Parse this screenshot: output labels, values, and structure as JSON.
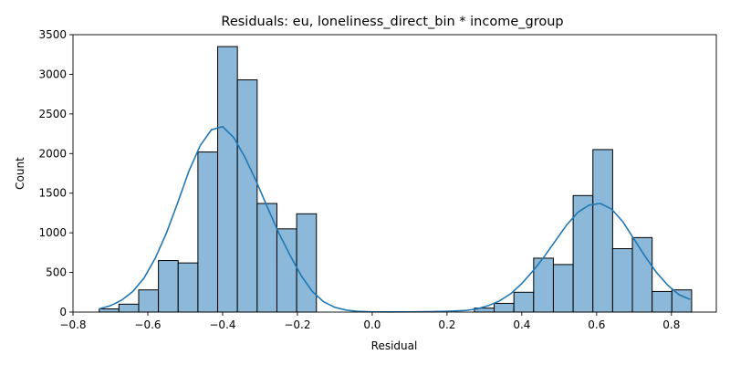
{
  "chart_data": {
    "type": "bar",
    "title": "Residuals: eu, loneliness_direct_bin * income_group",
    "xlabel": "Residual",
    "ylabel": "Count",
    "xlim": [
      -0.8,
      0.92
    ],
    "ylim": [
      0,
      3500
    ],
    "xticks": [
      -0.8,
      -0.6,
      -0.4,
      -0.2,
      0.0,
      0.2,
      0.4,
      0.6,
      0.8
    ],
    "xtick_labels": [
      "−0.8",
      "−0.6",
      "−0.4",
      "−0.2",
      "0.0",
      "0.2",
      "0.4",
      "0.6",
      "0.8"
    ],
    "yticks": [
      0,
      500,
      1000,
      1500,
      2000,
      2500,
      3000,
      3500
    ],
    "ytick_labels": [
      "0",
      "500",
      "1000",
      "1500",
      "2000",
      "2500",
      "3000",
      "3500"
    ],
    "grid": false,
    "bins": [
      {
        "x0": -0.73,
        "x1": -0.6772,
        "count": 40
      },
      {
        "x0": -0.6772,
        "x1": -0.6244,
        "count": 100
      },
      {
        "x0": -0.6244,
        "x1": -0.5716,
        "count": 280
      },
      {
        "x0": -0.5716,
        "x1": -0.5188,
        "count": 650
      },
      {
        "x0": -0.5188,
        "x1": -0.466,
        "count": 620
      },
      {
        "x0": -0.466,
        "x1": -0.4132,
        "count": 2020
      },
      {
        "x0": -0.4132,
        "x1": -0.3604,
        "count": 3350
      },
      {
        "x0": -0.3604,
        "x1": -0.3076,
        "count": 2930
      },
      {
        "x0": -0.3076,
        "x1": -0.2548,
        "count": 1370
      },
      {
        "x0": -0.2548,
        "x1": -0.202,
        "count": 1050
      },
      {
        "x0": -0.202,
        "x1": -0.1492,
        "count": 1240
      },
      {
        "x0": 0.2732,
        "x1": 0.326,
        "count": 50
      },
      {
        "x0": 0.326,
        "x1": 0.3788,
        "count": 110
      },
      {
        "x0": 0.3788,
        "x1": 0.4316,
        "count": 250
      },
      {
        "x0": 0.4316,
        "x1": 0.4844,
        "count": 680
      },
      {
        "x0": 0.4844,
        "x1": 0.5372,
        "count": 600
      },
      {
        "x0": 0.5372,
        "x1": 0.59,
        "count": 1470
      },
      {
        "x0": 0.59,
        "x1": 0.6428,
        "count": 2050
      },
      {
        "x0": 0.6428,
        "x1": 0.6956,
        "count": 800
      },
      {
        "x0": 0.6956,
        "x1": 0.7484,
        "count": 940
      },
      {
        "x0": 0.7484,
        "x1": 0.8012,
        "count": 260
      },
      {
        "x0": 0.8012,
        "x1": 0.854,
        "count": 280
      }
    ],
    "kde": {
      "x": [
        -0.73,
        -0.7,
        -0.67,
        -0.64,
        -0.61,
        -0.58,
        -0.55,
        -0.52,
        -0.49,
        -0.46,
        -0.43,
        -0.4,
        -0.37,
        -0.34,
        -0.31,
        -0.28,
        -0.25,
        -0.22,
        -0.19,
        -0.16,
        -0.13,
        -0.1,
        -0.07,
        -0.04,
        0.0,
        0.05,
        0.1,
        0.15,
        0.2,
        0.25,
        0.28,
        0.31,
        0.34,
        0.37,
        0.4,
        0.43,
        0.46,
        0.49,
        0.52,
        0.55,
        0.58,
        0.61,
        0.64,
        0.67,
        0.7,
        0.73,
        0.76,
        0.79,
        0.82,
        0.85
      ],
      "y": [
        40,
        80,
        150,
        260,
        430,
        680,
        1000,
        1380,
        1780,
        2100,
        2300,
        2340,
        2200,
        1950,
        1650,
        1320,
        1000,
        720,
        460,
        260,
        130,
        60,
        25,
        10,
        3,
        2,
        3,
        5,
        10,
        20,
        40,
        80,
        140,
        230,
        360,
        520,
        700,
        900,
        1100,
        1260,
        1350,
        1370,
        1300,
        1140,
        920,
        700,
        500,
        340,
        220,
        160
      ]
    }
  }
}
